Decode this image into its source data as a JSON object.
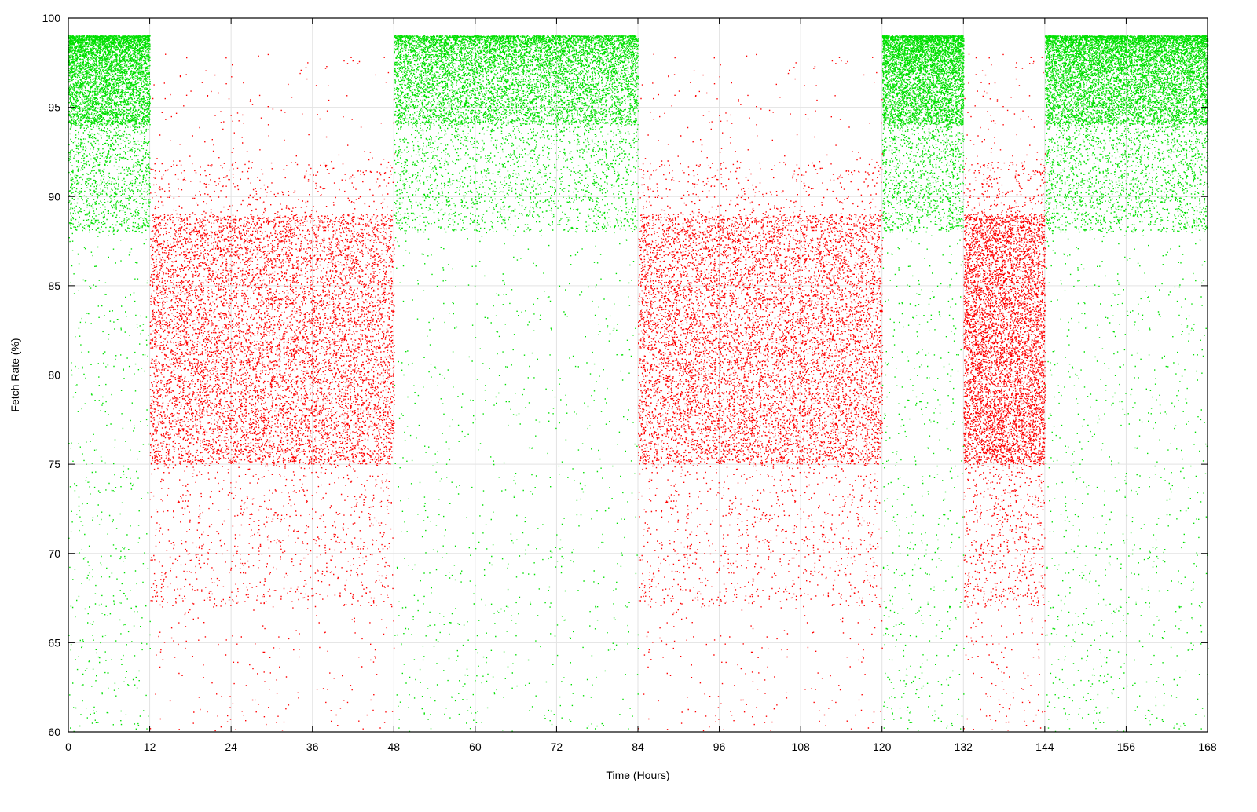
{
  "chart_data": {
    "type": "scatter",
    "title": "",
    "xlabel": "Time (Hours)",
    "ylabel": "Fetch Rate (%)",
    "xlim": [
      0,
      168
    ],
    "ylim": [
      60,
      100
    ],
    "xticks": [
      0,
      12,
      24,
      36,
      48,
      60,
      72,
      84,
      96,
      108,
      120,
      132,
      144,
      156,
      168
    ],
    "yticks": [
      60,
      65,
      70,
      75,
      80,
      85,
      90,
      95,
      100
    ],
    "xtick_labels": [
      "0",
      "12",
      "24",
      "36",
      "48",
      "60",
      "72",
      "84",
      "96",
      "108",
      "120",
      "132",
      "144",
      "156",
      "168"
    ],
    "ytick_labels": [
      "60",
      "65",
      "70",
      "75",
      "80",
      "85",
      "90",
      "95",
      "100"
    ],
    "grid": true,
    "legend": "none",
    "colors": {
      "high": "#00e000",
      "low": "#ff0000",
      "grid": "#e3e3e3"
    },
    "series": [
      {
        "color": "#00e000",
        "intervals": [
          [
            0,
            12
          ],
          [
            48,
            84
          ],
          [
            120,
            132
          ],
          [
            144,
            168
          ]
        ],
        "typical_range": [
          88,
          99
        ],
        "dense_band_top": 99
      },
      {
        "color": "#ff0000",
        "intervals": [
          [
            12,
            48
          ],
          [
            84,
            120
          ],
          [
            132,
            144
          ]
        ],
        "typical_range": [
          67,
          92
        ],
        "dense_range": [
          75,
          89
        ]
      }
    ]
  }
}
